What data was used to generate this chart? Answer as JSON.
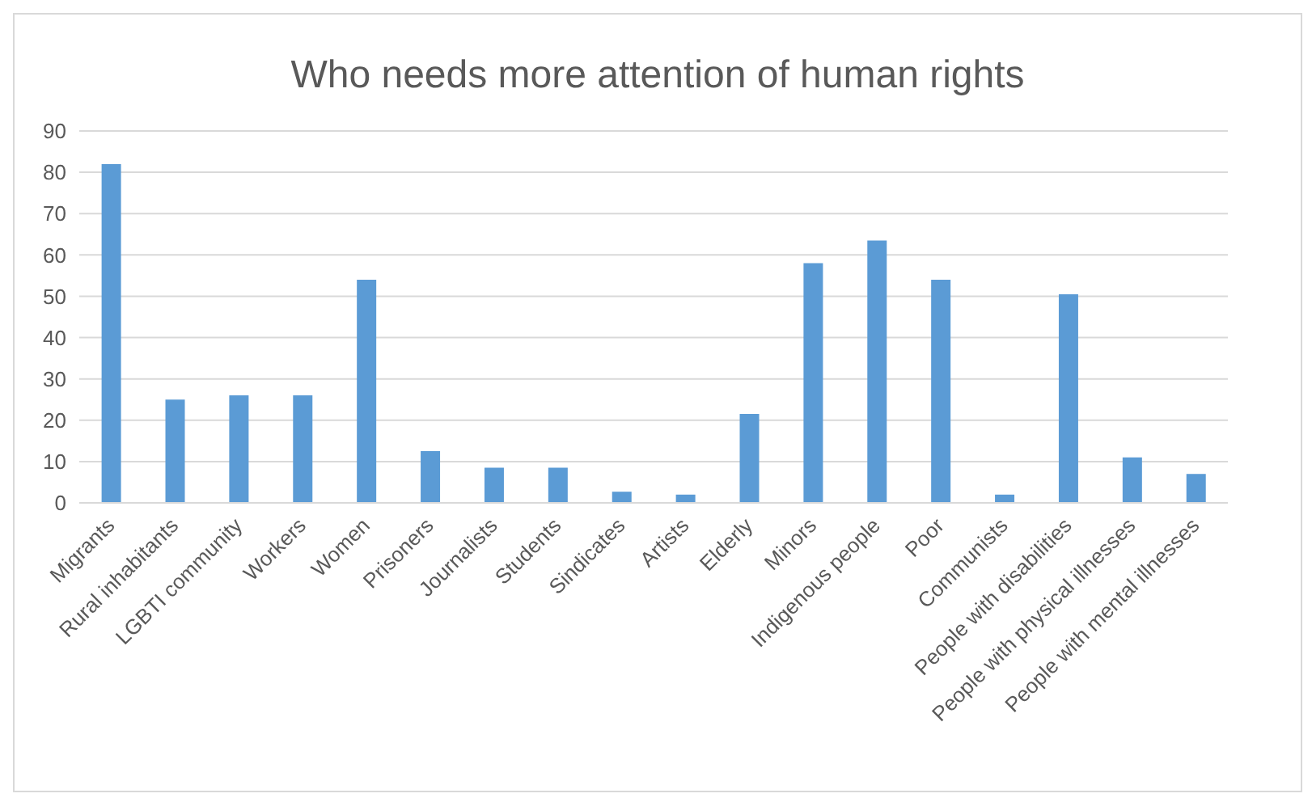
{
  "chart_data": {
    "type": "bar",
    "title": "Who needs more attention of human rights",
    "categories": [
      "Migrants",
      "Rural inhabitants",
      "LGBTI community",
      "Workers",
      "Women",
      "Prisoners",
      "Journalists",
      "Students",
      "Sindicates",
      "Artists",
      "Elderly",
      "Minors",
      "Indigenous people",
      "Poor",
      "Communists",
      "People with disabilities",
      "People with physical illnesses",
      "People with mental illnesses"
    ],
    "values": [
      82,
      25,
      26,
      26,
      54,
      12.5,
      8.5,
      8.5,
      2.7,
      2,
      21.5,
      58,
      63.5,
      54,
      2,
      50.5,
      11,
      7
    ],
    "color": "#5b9bd5",
    "ylim": [
      0,
      90
    ],
    "yticks": [
      0,
      10,
      20,
      30,
      40,
      50,
      60,
      70,
      80,
      90
    ],
    "grid": "y"
  }
}
